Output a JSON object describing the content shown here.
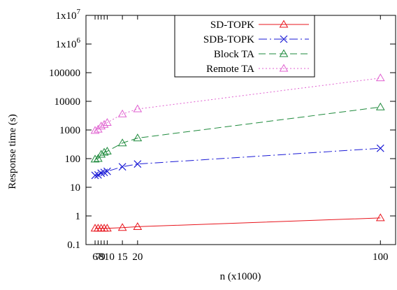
{
  "chart_data": {
    "type": "line",
    "xlabel": "n (x1000)",
    "ylabel": "Response time (s)",
    "xscale": "linear",
    "yscale": "log",
    "xlim": [
      3,
      105
    ],
    "ylim": [
      0.1,
      10000000
    ],
    "x_ticks": [
      {
        "value": 6,
        "label": "6"
      },
      {
        "value": 7,
        "label": "7"
      },
      {
        "value": 8,
        "label": "8"
      },
      {
        "value": 9,
        "label": "9"
      },
      {
        "value": 10,
        "label": "10"
      },
      {
        "value": 15,
        "label": "15"
      },
      {
        "value": 20,
        "label": "20"
      },
      {
        "value": 100,
        "label": "100"
      }
    ],
    "y_ticks": [
      {
        "value": 0.1,
        "label": "0.1"
      },
      {
        "value": 1,
        "label": "1"
      },
      {
        "value": 10,
        "label": "10"
      },
      {
        "value": 100,
        "label": "100"
      },
      {
        "value": 1000,
        "label": "1000"
      },
      {
        "value": 10000,
        "label": "10000"
      },
      {
        "value": 100000,
        "label": "100000"
      },
      {
        "value": 1000000,
        "label": "1x10",
        "sup": "6"
      },
      {
        "value": 10000000,
        "label": "1x10",
        "sup": "7"
      }
    ],
    "grid": false,
    "legend_position": "top-center",
    "x": [
      6,
      7,
      8,
      9,
      10,
      15,
      20,
      100
    ],
    "series": [
      {
        "name": "SD-TOPK",
        "color": "#e8141c",
        "marker": "triangle",
        "dash": "",
        "values": [
          0.37,
          0.37,
          0.37,
          0.37,
          0.37,
          0.39,
          0.42,
          0.85
        ]
      },
      {
        "name": "SDB-TOPK",
        "color": "#1a1ad6",
        "marker": "x",
        "dash": "12 4 2 4",
        "values": [
          26,
          27,
          31,
          33,
          36,
          52,
          65,
          230
        ]
      },
      {
        "name": "Block TA",
        "color": "#1e8a3c",
        "marker": "triangle",
        "dash": "10 5",
        "values": [
          95,
          100,
          140,
          165,
          180,
          350,
          520,
          6300
        ]
      },
      {
        "name": "Remote TA",
        "color": "#e060d0",
        "marker": "triangle",
        "dash": "2 3",
        "values": [
          950,
          1050,
          1350,
          1550,
          1800,
          3600,
          5400,
          65000
        ]
      }
    ]
  }
}
